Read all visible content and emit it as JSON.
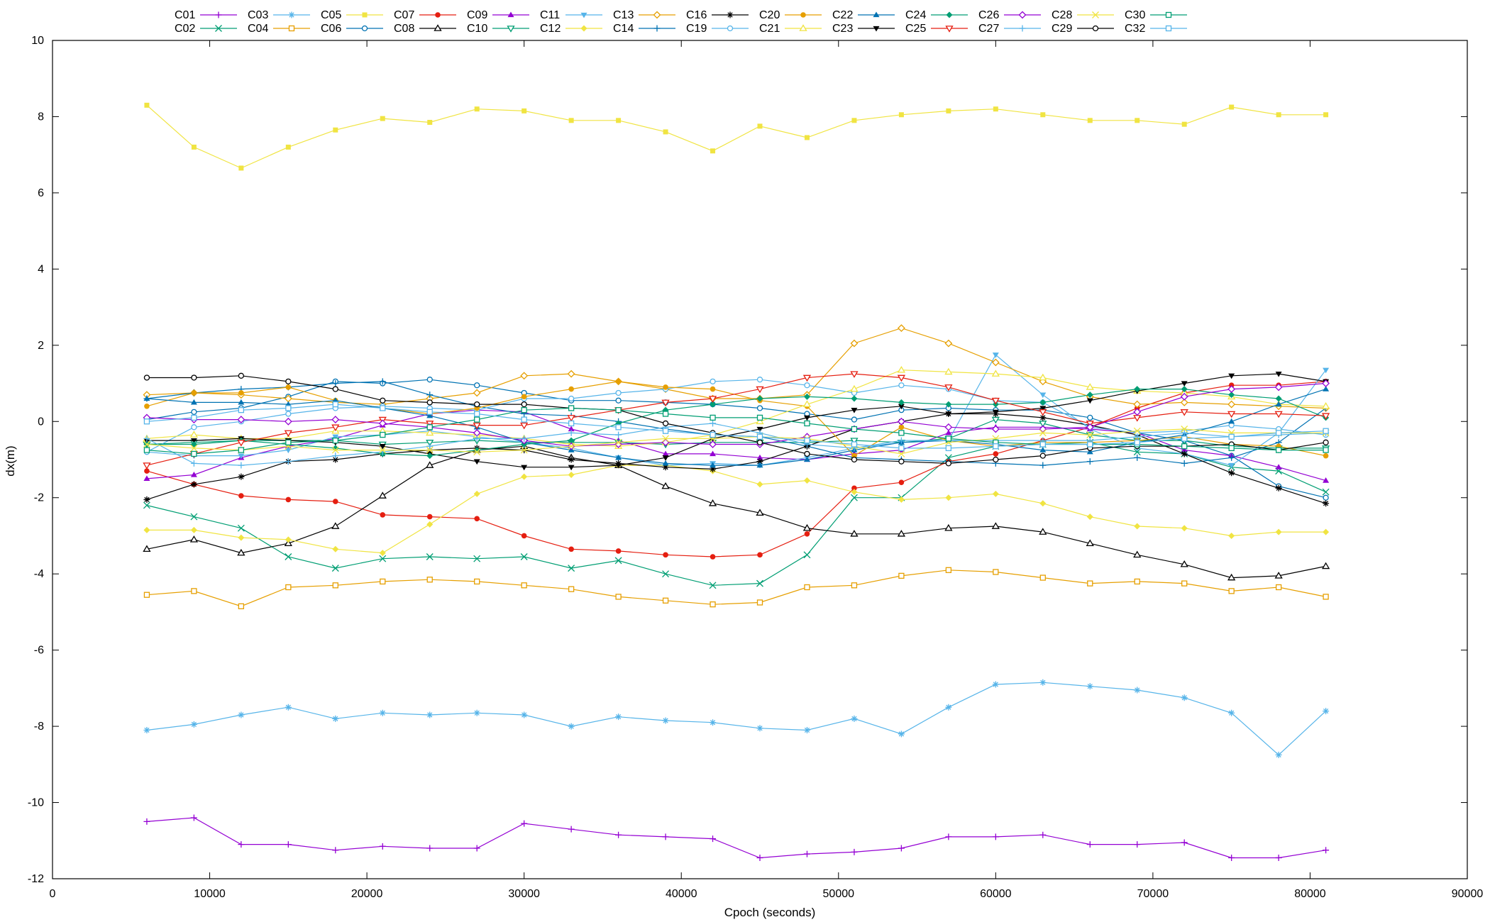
{
  "chart_data": {
    "type": "line",
    "title": "",
    "xlabel": "Cpoch (seconds)",
    "ylabel": "dx(m)",
    "xlim": [
      0,
      90000
    ],
    "ylim": [
      -12,
      10
    ],
    "x_ticks": [
      0,
      10000,
      20000,
      30000,
      40000,
      50000,
      60000,
      70000,
      80000,
      90000
    ],
    "y_ticks": [
      -12,
      -10,
      -8,
      -6,
      -4,
      -2,
      0,
      2,
      4,
      6,
      8,
      10
    ],
    "grid": false,
    "legend_position": "top",
    "x": [
      6000,
      9000,
      12000,
      15000,
      18000,
      21000,
      24000,
      27000,
      30000,
      33000,
      36000,
      39000,
      42000,
      45000,
      48000,
      51000,
      54000,
      57000,
      60000,
      63000,
      66000,
      69000,
      72000,
      75000,
      78000,
      81000
    ],
    "series": [
      {
        "name": "C01",
        "color": "#9400d3",
        "marker": "plus",
        "values": [
          -10.5,
          -10.4,
          -11.1,
          -11.1,
          -11.25,
          -11.15,
          -11.2,
          -11.2,
          -10.55,
          -10.7,
          -10.85,
          -10.9,
          -10.95,
          -11.45,
          -11.35,
          -11.3,
          -11.2,
          -10.9,
          -10.9,
          -10.85,
          -11.1,
          -11.1,
          -11.05,
          -11.45,
          -11.45,
          -11.25
        ]
      },
      {
        "name": "C02",
        "color": "#009e73",
        "marker": "cross",
        "values": [
          -2.2,
          -2.5,
          -2.8,
          -3.55,
          -3.85,
          -3.6,
          -3.55,
          -3.6,
          -3.55,
          -3.85,
          -3.65,
          -4.0,
          -4.3,
          -4.25,
          -3.5,
          -2.0,
          -2.0,
          -0.95,
          -0.65,
          -0.6,
          -0.55,
          -0.8,
          -0.85,
          -1.2,
          -1.3,
          -1.85
        ]
      },
      {
        "name": "C03",
        "color": "#56b4e9",
        "marker": "star",
        "values": [
          -8.1,
          -7.95,
          -7.7,
          -7.5,
          -7.8,
          -7.65,
          -7.7,
          -7.65,
          -7.7,
          -8.0,
          -7.75,
          -7.85,
          -7.9,
          -8.05,
          -8.1,
          -7.8,
          -8.2,
          -7.5,
          -6.9,
          -6.85,
          -6.95,
          -7.05,
          -7.25,
          -7.65,
          -8.75,
          -7.6
        ]
      },
      {
        "name": "C04",
        "color": "#e69f00",
        "marker": "square-open",
        "values": [
          -4.55,
          -4.45,
          -4.85,
          -4.35,
          -4.3,
          -4.2,
          -4.15,
          -4.2,
          -4.3,
          -4.4,
          -4.6,
          -4.7,
          -4.8,
          -4.75,
          -4.35,
          -4.3,
          -4.05,
          -3.9,
          -3.95,
          -4.1,
          -4.25,
          -4.2,
          -4.25,
          -4.45,
          -4.35,
          -4.6
        ]
      },
      {
        "name": "C05",
        "color": "#f0e442",
        "marker": "square-filled",
        "values": [
          8.3,
          7.2,
          6.65,
          7.2,
          7.65,
          7.95,
          7.85,
          8.2,
          8.15,
          7.9,
          7.9,
          7.6,
          7.1,
          7.75,
          7.45,
          7.9,
          8.05,
          8.15,
          8.2,
          8.05,
          7.9,
          7.9,
          7.8,
          8.25,
          8.05,
          8.05
        ]
      },
      {
        "name": "C06",
        "color": "#0072b2",
        "marker": "circle-open",
        "values": [
          0.05,
          0.25,
          0.35,
          0.65,
          1.05,
          1.0,
          1.1,
          0.95,
          0.75,
          0.55,
          0.55,
          0.5,
          0.45,
          0.35,
          0.2,
          0.05,
          0.3,
          0.35,
          0.3,
          0.3,
          0.1,
          -0.3,
          -0.5,
          -0.9,
          -1.7,
          -2.0
        ]
      },
      {
        "name": "C07",
        "color": "#e51e10",
        "marker": "circle-filled",
        "values": [
          -1.3,
          -1.65,
          -1.95,
          -2.05,
          -2.1,
          -2.45,
          -2.5,
          -2.55,
          -3.0,
          -3.35,
          -3.4,
          -3.5,
          -3.55,
          -3.5,
          -2.95,
          -1.75,
          -1.6,
          -1.05,
          -0.85,
          -0.5,
          -0.15,
          0.35,
          0.75,
          0.95,
          0.95,
          1.05
        ]
      },
      {
        "name": "C08",
        "color": "#000000",
        "marker": "triangle-open",
        "values": [
          -3.35,
          -3.1,
          -3.45,
          -3.2,
          -2.75,
          -1.95,
          -1.15,
          -0.75,
          -0.65,
          -0.95,
          -1.15,
          -1.7,
          -2.15,
          -2.4,
          -2.8,
          -2.95,
          -2.95,
          -2.8,
          -2.75,
          -2.9,
          -3.2,
          -3.5,
          -3.75,
          -4.1,
          -4.05,
          -3.8
        ]
      },
      {
        "name": "C09",
        "color": "#9400d3",
        "marker": "triangle-filled",
        "values": [
          -1.5,
          -1.4,
          -0.95,
          -0.65,
          -0.45,
          -0.1,
          0.2,
          0.3,
          0.25,
          -0.2,
          -0.5,
          -0.85,
          -0.85,
          -0.95,
          -1.0,
          -0.85,
          -0.75,
          -0.3,
          -0.15,
          -0.15,
          -0.2,
          -0.3,
          -0.75,
          -0.9,
          -1.2,
          -1.55
        ]
      },
      {
        "name": "C10",
        "color": "#009e73",
        "marker": "triangle-down-open",
        "values": [
          -0.6,
          -0.55,
          -0.5,
          -0.5,
          -0.5,
          -0.6,
          -0.55,
          -0.5,
          -0.55,
          -0.55,
          -0.55,
          -0.6,
          -0.55,
          -0.55,
          -0.55,
          -0.5,
          -0.55,
          -0.45,
          0.05,
          -0.05,
          -0.35,
          -0.5,
          -0.5,
          -0.65,
          -0.7,
          -0.7
        ]
      },
      {
        "name": "C11",
        "color": "#56b4e9",
        "marker": "triangle-down-filled",
        "values": [
          -0.8,
          -0.9,
          -0.9,
          -0.75,
          -0.4,
          -0.35,
          -0.25,
          -0.4,
          -0.55,
          -0.7,
          -0.95,
          -1.15,
          -1.1,
          -1.15,
          -0.95,
          -0.7,
          -0.55,
          -0.5,
          1.75,
          0.7,
          -0.2,
          -0.7,
          -0.85,
          -1.15,
          -0.3,
          1.35
        ]
      },
      {
        "name": "C12",
        "color": "#f0e442",
        "marker": "diamond-filled",
        "values": [
          -2.85,
          -2.85,
          -3.05,
          -3.1,
          -3.35,
          -3.45,
          -2.7,
          -1.9,
          -1.45,
          -1.4,
          -1.15,
          -1.15,
          -1.3,
          -1.65,
          -1.55,
          -1.85,
          -2.05,
          -2.0,
          -1.9,
          -2.15,
          -2.5,
          -2.75,
          -2.8,
          -3.0,
          -2.9,
          -2.9
        ]
      },
      {
        "name": "C13",
        "color": "#e69f00",
        "marker": "diamond-open",
        "values": [
          0.7,
          0.75,
          0.7,
          0.6,
          0.5,
          0.45,
          0.6,
          0.75,
          1.2,
          1.25,
          1.05,
          0.85,
          0.6,
          0.6,
          0.7,
          2.05,
          2.45,
          2.05,
          1.55,
          1.05,
          0.65,
          0.45,
          0.5,
          0.45,
          0.4,
          0.35
        ]
      },
      {
        "name": "C14",
        "color": "#0072b2",
        "marker": "plus",
        "values": [
          0.6,
          0.75,
          0.85,
          0.9,
          1.0,
          1.05,
          0.7,
          0.4,
          0.2,
          0.15,
          0.0,
          -0.2,
          -0.35,
          -0.4,
          -0.65,
          -0.95,
          -1.0,
          -1.05,
          -1.1,
          -1.15,
          -1.05,
          -0.95,
          -1.1,
          -0.95,
          -0.55,
          0.35
        ]
      },
      {
        "name": "C16",
        "color": "#000000",
        "marker": "star",
        "values": [
          -2.05,
          -1.65,
          -1.45,
          -1.05,
          -1.0,
          -0.85,
          -0.75,
          -0.7,
          -0.75,
          -1.0,
          -1.1,
          -1.2,
          -1.25,
          -1.05,
          -0.65,
          -0.2,
          0.0,
          0.2,
          0.2,
          0.1,
          -0.1,
          -0.35,
          -0.85,
          -1.35,
          -1.75,
          -2.15
        ]
      },
      {
        "name": "C19",
        "color": "#56b4e9",
        "marker": "circle-open",
        "values": [
          -0.8,
          -0.15,
          0.0,
          0.2,
          0.35,
          0.4,
          0.35,
          0.3,
          0.6,
          0.6,
          0.75,
          0.85,
          1.05,
          1.1,
          0.95,
          0.75,
          0.95,
          0.85,
          0.55,
          0.5,
          -0.15,
          -0.3,
          -0.25,
          -0.1,
          -0.2,
          -0.35
        ]
      },
      {
        "name": "C20",
        "color": "#e69f00",
        "marker": "circle-filled",
        "values": [
          0.4,
          0.75,
          0.75,
          0.9,
          0.55,
          0.35,
          0.2,
          0.35,
          0.65,
          0.85,
          1.05,
          0.9,
          0.85,
          0.55,
          0.4,
          -0.9,
          -0.15,
          -0.5,
          -0.65,
          -0.55,
          -0.55,
          -0.5,
          -0.4,
          -0.6,
          -0.65,
          -0.9
        ]
      },
      {
        "name": "C21",
        "color": "#f0e442",
        "marker": "triangle-open",
        "values": [
          -0.45,
          -0.35,
          -0.45,
          -0.45,
          -0.25,
          -0.25,
          -0.3,
          -0.35,
          -0.45,
          -0.6,
          -0.65,
          -0.55,
          -0.35,
          0.0,
          0.45,
          0.85,
          1.35,
          1.3,
          1.25,
          1.15,
          0.9,
          0.8,
          0.75,
          0.65,
          0.45,
          0.4
        ]
      },
      {
        "name": "C22",
        "color": "#0072b2",
        "marker": "triangle-filled",
        "values": [
          0.6,
          0.5,
          0.5,
          0.45,
          0.55,
          0.35,
          0.15,
          -0.15,
          -0.55,
          -0.75,
          -0.95,
          -1.1,
          -1.15,
          -1.15,
          -1.0,
          -0.75,
          -0.55,
          -0.5,
          -0.6,
          -0.75,
          -0.8,
          -0.55,
          -0.35,
          0.0,
          0.45,
          0.85
        ]
      },
      {
        "name": "C23",
        "color": "#000000",
        "marker": "triangle-down-filled",
        "values": [
          -0.5,
          -0.5,
          -0.45,
          -0.5,
          -0.55,
          -0.65,
          -0.85,
          -1.05,
          -1.2,
          -1.2,
          -1.15,
          -0.95,
          -0.45,
          -0.2,
          0.1,
          0.3,
          0.4,
          0.2,
          0.25,
          0.35,
          0.55,
          0.8,
          1.0,
          1.2,
          1.25,
          1.05
        ]
      },
      {
        "name": "C24",
        "color": "#009e73",
        "marker": "diamond-filled",
        "values": [
          -0.6,
          -0.6,
          -0.5,
          -0.6,
          -0.7,
          -0.85,
          -0.9,
          -0.75,
          -0.6,
          -0.5,
          -0.05,
          0.3,
          0.45,
          0.6,
          0.65,
          0.6,
          0.5,
          0.45,
          0.45,
          0.5,
          0.7,
          0.85,
          0.85,
          0.7,
          0.6,
          0.1
        ]
      },
      {
        "name": "C25",
        "color": "#e51e10",
        "marker": "triangle-down-open",
        "values": [
          -1.15,
          -0.85,
          -0.55,
          -0.3,
          -0.15,
          0.05,
          -0.05,
          -0.1,
          -0.1,
          0.1,
          0.3,
          0.5,
          0.6,
          0.85,
          1.15,
          1.25,
          1.15,
          0.9,
          0.55,
          0.25,
          -0.05,
          0.1,
          0.25,
          0.2,
          0.2,
          0.15
        ]
      },
      {
        "name": "C26",
        "color": "#9400d3",
        "marker": "diamond-open",
        "values": [
          0.1,
          0.05,
          0.05,
          0.0,
          0.05,
          -0.05,
          -0.15,
          -0.3,
          -0.5,
          -0.65,
          -0.6,
          -0.55,
          -0.6,
          -0.6,
          -0.4,
          -0.2,
          0.0,
          -0.15,
          -0.2,
          -0.2,
          -0.15,
          0.25,
          0.65,
          0.85,
          0.9,
          1.0
        ]
      },
      {
        "name": "C27",
        "color": "#56b4e9",
        "marker": "plus",
        "values": [
          -0.45,
          -1.1,
          -1.15,
          -1.05,
          -0.9,
          -0.8,
          -0.65,
          -0.45,
          -0.45,
          -0.3,
          -0.35,
          -0.15,
          -0.05,
          -0.3,
          -0.6,
          -0.7,
          -0.5,
          -0.5,
          -0.5,
          -0.5,
          -0.5,
          -0.4,
          -0.3,
          -0.4,
          -0.35,
          -0.3
        ]
      },
      {
        "name": "C28",
        "color": "#f0e442",
        "marker": "cross",
        "values": [
          -0.6,
          -0.7,
          -0.75,
          -0.65,
          -0.75,
          -0.75,
          -0.75,
          -0.8,
          -0.75,
          -0.65,
          -0.55,
          -0.45,
          -0.45,
          -0.4,
          -0.45,
          -0.65,
          -0.85,
          -0.55,
          -0.45,
          -0.3,
          -0.35,
          -0.25,
          -0.2,
          -0.3,
          -0.3,
          -0.3
        ]
      },
      {
        "name": "C29",
        "color": "#000000",
        "marker": "circle-open",
        "values": [
          1.15,
          1.15,
          1.2,
          1.05,
          0.85,
          0.55,
          0.5,
          0.45,
          0.45,
          0.35,
          0.3,
          -0.05,
          -0.3,
          -0.55,
          -0.85,
          -1.0,
          -1.05,
          -1.1,
          -1.0,
          -0.9,
          -0.7,
          -0.65,
          -0.65,
          -0.6,
          -0.75,
          -0.55
        ]
      },
      {
        "name": "C30",
        "color": "#009e73",
        "marker": "square-open",
        "values": [
          -0.75,
          -0.85,
          -0.75,
          -0.55,
          -0.5,
          -0.35,
          -0.15,
          0.05,
          0.3,
          0.35,
          0.3,
          0.2,
          0.1,
          0.1,
          -0.05,
          -0.2,
          -0.3,
          -0.45,
          -0.55,
          -0.6,
          -0.6,
          -0.6,
          -0.65,
          -0.7,
          -0.75,
          -0.75
        ]
      },
      {
        "name": "C32",
        "color": "#56b4e9",
        "marker": "square-open",
        "values": [
          0.0,
          0.1,
          0.3,
          0.35,
          0.45,
          0.35,
          0.25,
          0.2,
          0.05,
          -0.05,
          -0.15,
          -0.25,
          -0.35,
          -0.4,
          -0.5,
          -0.6,
          -0.7,
          -0.7,
          -0.65,
          -0.6,
          -0.6,
          -0.55,
          -0.45,
          -0.4,
          -0.3,
          -0.25
        ]
      }
    ]
  }
}
